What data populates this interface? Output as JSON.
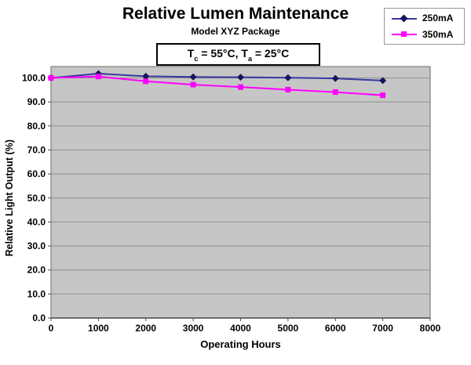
{
  "annotation": {
    "prefix": "T",
    "sub_c": "c",
    "middle": " = 55°C, T",
    "sub_a": "a",
    "suffix": " = 25°C"
  },
  "colors": {
    "plot_bg": "#c6c6c6",
    "gridline": "#8f8f8f",
    "plot_border": "#7f7f7f",
    "axis_tick": "#4d4d4d",
    "legend_border": "#969696",
    "annotation_border": "#000000",
    "series_250mA_line": "#3838a0",
    "series_250mA_marker": "#16165f",
    "series_350mA_line": "#ff00ff",
    "series_350mA_marker": "#ff00ff"
  },
  "chart_data": {
    "type": "line",
    "title": "Relative Lumen Maintenance",
    "subtitle": "Model XYZ Package",
    "annotation_text": "Tc = 55°C, Ta = 25°C",
    "xlabel": "Operating Hours",
    "ylabel": "Relative Light Output (%)",
    "xlim": [
      0,
      8000
    ],
    "ylim": [
      0,
      100
    ],
    "grid": "horizontal",
    "legend_position": "top-right",
    "x_ticks": [
      0,
      1000,
      2000,
      3000,
      4000,
      5000,
      6000,
      7000,
      8000
    ],
    "y_ticks": [
      0,
      10,
      20,
      30,
      40,
      50,
      60,
      70,
      80,
      90,
      100
    ],
    "x": [
      0,
      1000,
      2000,
      3000,
      4000,
      5000,
      6000,
      7000
    ],
    "series": [
      {
        "name": "250mA",
        "marker": "diamond",
        "line_color": "#3838a0",
        "marker_color": "#16165f",
        "values": [
          100.0,
          101.8,
          100.7,
          100.4,
          100.3,
          100.1,
          99.8,
          98.9
        ]
      },
      {
        "name": "350mA",
        "marker": "square",
        "line_color": "#ff00ff",
        "marker_color": "#ff00ff",
        "values": [
          100.0,
          100.6,
          98.6,
          97.2,
          96.2,
          95.1,
          94.1,
          92.8
        ]
      }
    ]
  }
}
